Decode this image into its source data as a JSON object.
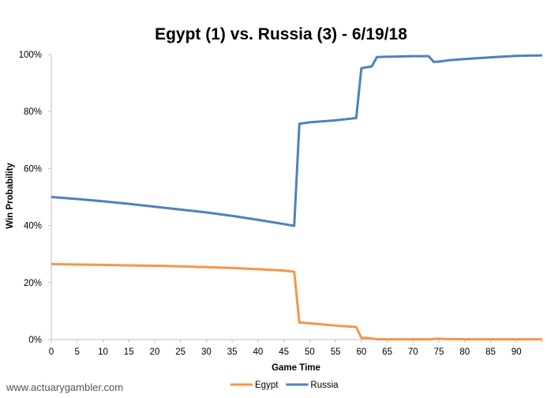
{
  "chart_data": {
    "type": "line",
    "title": "Egypt (1) vs. Russia (3) - 6/19/18",
    "xlabel": "Game Time",
    "ylabel": "Win Probability",
    "xlim": [
      0,
      95
    ],
    "ylim": [
      0,
      100
    ],
    "x_ticks": [
      0,
      5,
      10,
      15,
      20,
      25,
      30,
      35,
      40,
      45,
      50,
      55,
      60,
      65,
      70,
      75,
      80,
      85,
      90
    ],
    "y_ticks": [
      0,
      20,
      40,
      60,
      80,
      100
    ],
    "y_tick_labels": [
      "0%",
      "20%",
      "40%",
      "60%",
      "80%",
      "100%"
    ],
    "legend_position": "bottom",
    "grid": false,
    "series": [
      {
        "name": "Egypt",
        "color": "#F79646",
        "points": [
          [
            0,
            26.5
          ],
          [
            5,
            26.3
          ],
          [
            10,
            26.2
          ],
          [
            15,
            26.0
          ],
          [
            20,
            25.9
          ],
          [
            25,
            25.7
          ],
          [
            30,
            25.4
          ],
          [
            35,
            25.1
          ],
          [
            40,
            24.7
          ],
          [
            45,
            24.2
          ],
          [
            47,
            23.8
          ],
          [
            48,
            6.0
          ],
          [
            52,
            5.4
          ],
          [
            55,
            4.9
          ],
          [
            59,
            4.4
          ],
          [
            60,
            0.6
          ],
          [
            61,
            0.6
          ],
          [
            62,
            0.4
          ],
          [
            63,
            0.1
          ],
          [
            65,
            0.1
          ],
          [
            70,
            0.1
          ],
          [
            73,
            0.1
          ],
          [
            75,
            0.3
          ],
          [
            76,
            0.2
          ],
          [
            80,
            0.1
          ],
          [
            85,
            0.1
          ],
          [
            90,
            0.1
          ],
          [
            95,
            0.1
          ]
        ]
      },
      {
        "name": "Russia",
        "color": "#4F81BD",
        "points": [
          [
            0,
            50.0
          ],
          [
            5,
            49.3
          ],
          [
            10,
            48.5
          ],
          [
            15,
            47.6
          ],
          [
            20,
            46.6
          ],
          [
            25,
            45.6
          ],
          [
            30,
            44.6
          ],
          [
            35,
            43.4
          ],
          [
            40,
            42.0
          ],
          [
            45,
            40.5
          ],
          [
            47,
            39.9
          ],
          [
            48,
            75.7
          ],
          [
            50,
            76.2
          ],
          [
            55,
            76.9
          ],
          [
            59,
            77.7
          ],
          [
            60,
            95.2
          ],
          [
            62,
            95.8
          ],
          [
            63,
            99.1
          ],
          [
            65,
            99.2
          ],
          [
            70,
            99.4
          ],
          [
            73,
            99.4
          ],
          [
            74,
            97.4
          ],
          [
            75,
            97.5
          ],
          [
            77,
            98.0
          ],
          [
            80,
            98.4
          ],
          [
            85,
            99.0
          ],
          [
            90,
            99.5
          ],
          [
            95,
            99.7
          ]
        ]
      }
    ]
  },
  "watermark": "www.actuarygambler.com"
}
